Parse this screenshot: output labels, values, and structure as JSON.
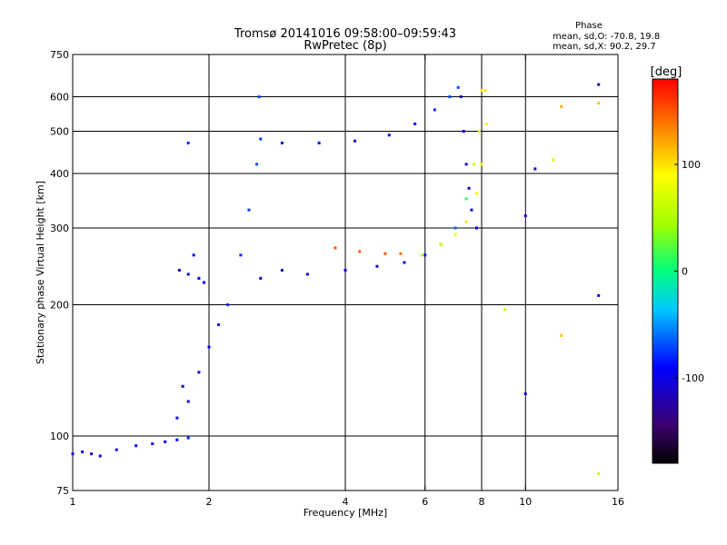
{
  "chart_data": {
    "type": "scatter",
    "title": "Tromsø 20141016 09:58:00–09:59:43",
    "subtitle": "RwPretec (8p)",
    "phase_box": {
      "title": "Phase",
      "line1": "mean, sd,O: -70.8, 19.8",
      "line2": "mean, sd,X:  90.2, 29.7"
    },
    "xlabel": "Frequency [MHz]",
    "ylabel": "Stationary phase Virtual Height [km]",
    "x_scale": "log",
    "y_scale": "log",
    "xlim": [
      1,
      16
    ],
    "ylim": [
      75,
      750
    ],
    "x_ticks": [
      1,
      2,
      4,
      6,
      8,
      10,
      16
    ],
    "y_ticks": [
      75,
      100,
      200,
      300,
      400,
      500,
      600,
      750
    ],
    "x_grid": [
      2,
      4,
      6,
      8,
      10
    ],
    "y_grid": [
      100,
      200,
      300,
      400,
      500,
      600
    ],
    "colorbar": {
      "label": "[deg]",
      "range": [
        -180,
        180
      ],
      "ticks": [
        100,
        0,
        -100
      ]
    },
    "series": [
      {
        "points": [
          [
            1.0,
            91,
            -95
          ],
          [
            1.05,
            92,
            -90
          ],
          [
            1.1,
            91,
            -110
          ],
          [
            1.15,
            90,
            -100
          ],
          [
            1.25,
            93,
            -85
          ],
          [
            1.38,
            95,
            -90
          ],
          [
            1.5,
            96,
            -100
          ],
          [
            1.6,
            97,
            -95
          ],
          [
            1.7,
            98,
            -90
          ],
          [
            1.8,
            99,
            -80
          ]
        ]
      },
      {
        "points": [
          [
            1.72,
            240,
            -110
          ],
          [
            1.8,
            235,
            -105
          ],
          [
            1.9,
            230,
            -100
          ],
          [
            1.85,
            260,
            -100
          ],
          [
            1.95,
            225,
            -95
          ],
          [
            1.8,
            470,
            -80
          ]
        ]
      },
      {
        "points": [
          [
            1.7,
            110,
            -90
          ],
          [
            1.75,
            130,
            -100
          ],
          [
            1.8,
            120,
            -95
          ],
          [
            1.9,
            140,
            -100
          ],
          [
            2.0,
            160,
            -90
          ],
          [
            2.1,
            180,
            -85
          ],
          [
            2.2,
            200,
            -80
          ],
          [
            2.35,
            260,
            -80
          ],
          [
            2.45,
            330,
            -75
          ],
          [
            2.55,
            420,
            -70
          ],
          [
            2.6,
            480,
            -75
          ],
          [
            2.58,
            600,
            -70
          ]
        ]
      },
      {
        "points": [
          [
            2.6,
            230,
            -100
          ],
          [
            2.9,
            240,
            -110
          ],
          [
            3.3,
            235,
            -105
          ],
          [
            4.0,
            240,
            -110
          ],
          [
            4.7,
            245,
            -105
          ],
          [
            5.4,
            250,
            -100
          ],
          [
            6.0,
            260,
            -90
          ],
          [
            6.5,
            275,
            -80
          ],
          [
            7.0,
            300,
            -60
          ],
          [
            7.4,
            350,
            10
          ],
          [
            7.7,
            420,
            60
          ],
          [
            7.9,
            500,
            80
          ],
          [
            8.0,
            620,
            90
          ]
        ]
      },
      {
        "points": [
          [
            2.9,
            470,
            -110
          ],
          [
            3.5,
            470,
            -105
          ],
          [
            4.2,
            475,
            -110
          ],
          [
            5.0,
            490,
            -100
          ],
          [
            5.7,
            520,
            -90
          ],
          [
            6.3,
            560,
            -80
          ],
          [
            6.8,
            600,
            -70
          ],
          [
            7.1,
            630,
            -70
          ]
        ]
      },
      {
        "points": [
          [
            3.8,
            270,
            150
          ],
          [
            4.3,
            265,
            145
          ],
          [
            4.9,
            262,
            150
          ],
          [
            5.3,
            262,
            140
          ]
        ]
      },
      {
        "points": [
          [
            7.2,
            600,
            -105
          ],
          [
            7.3,
            500,
            -100
          ],
          [
            7.4,
            420,
            -100
          ],
          [
            7.5,
            370,
            -105
          ],
          [
            7.6,
            330,
            -100
          ],
          [
            7.8,
            300,
            -95
          ]
        ]
      },
      {
        "points": [
          [
            5.9,
            260,
            60
          ],
          [
            6.5,
            275,
            70
          ],
          [
            7.0,
            290,
            80
          ],
          [
            7.4,
            310,
            100
          ],
          [
            7.8,
            360,
            95
          ],
          [
            8.0,
            420,
            90
          ],
          [
            8.2,
            520,
            80
          ],
          [
            8.15,
            620,
            70
          ]
        ]
      },
      {
        "points": [
          [
            9.0,
            195,
            60
          ],
          [
            10.0,
            320,
            -100
          ],
          [
            10.0,
            125,
            -100
          ],
          [
            10.5,
            410,
            -110
          ],
          [
            11.5,
            430,
            70
          ],
          [
            14.5,
            210,
            -110
          ],
          [
            14.5,
            640,
            -120
          ],
          [
            12.0,
            570,
            120
          ],
          [
            12.0,
            170,
            110
          ],
          [
            14.5,
            82,
            60
          ],
          [
            14.5,
            580,
            110
          ]
        ]
      }
    ]
  }
}
